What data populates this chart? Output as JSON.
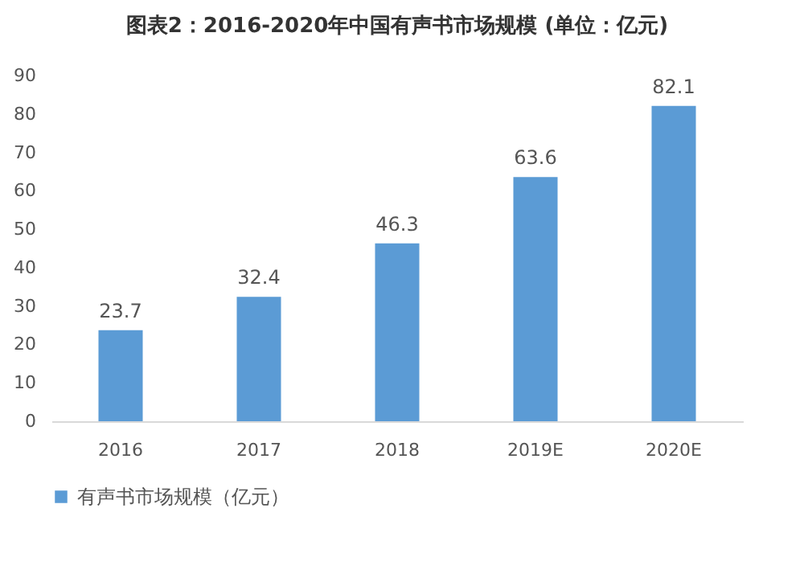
{
  "chart_data": {
    "type": "bar",
    "title": "图表2：2016-2020年中国有声书市场规模 (单位：亿元)",
    "categories": [
      "2016",
      "2017",
      "2018",
      "2019E",
      "2020E"
    ],
    "series": [
      {
        "name": "有声书市场规模（亿元）",
        "color": "#5b9bd5",
        "values": [
          23.7,
          32.4,
          46.3,
          63.6,
          82.1
        ]
      }
    ],
    "ylim": [
      0,
      90
    ],
    "yticks": [
      0,
      10,
      20,
      30,
      40,
      50,
      60,
      70,
      80,
      90
    ],
    "data_labels": true,
    "legend": "bottom"
  }
}
